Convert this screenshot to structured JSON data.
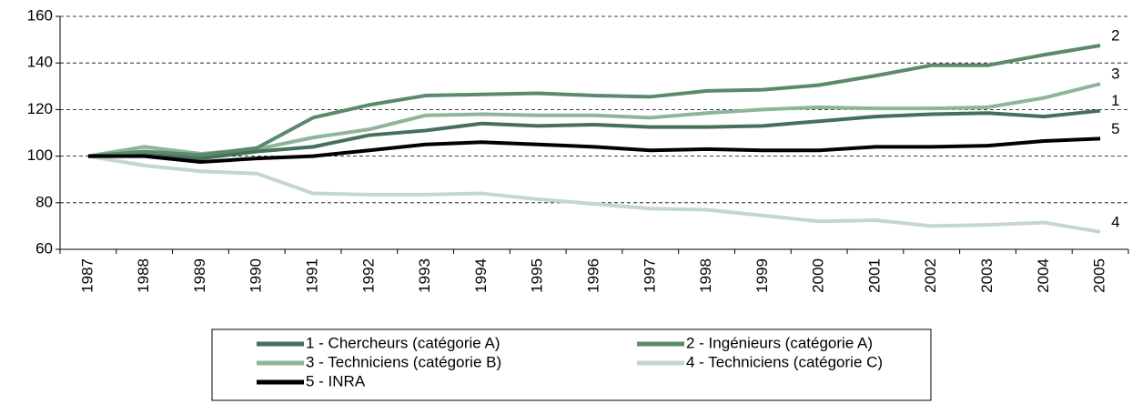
{
  "chart_data": {
    "type": "line",
    "categories": [
      "1987",
      "1988",
      "1989",
      "1990",
      "1991",
      "1992",
      "1993",
      "1994",
      "1995",
      "1996",
      "1997",
      "1998",
      "1999",
      "2000",
      "2001",
      "2002",
      "2003",
      "2004",
      "2005"
    ],
    "series": [
      {
        "name": "1 - Chercheurs (catégorie A)",
        "end_label": "1",
        "color": "#46705a",
        "values": [
          100,
          101,
          99,
          102,
          104,
          109,
          111,
          114,
          113,
          113.5,
          112.5,
          112.5,
          113,
          115,
          117,
          118,
          118.5,
          117,
          119.5
        ]
      },
      {
        "name": "2 - Ingénieurs (catégorie A)",
        "end_label": "2",
        "color": "#5a8a6b",
        "values": [
          100,
          102,
          100.5,
          103.5,
          116.5,
          122,
          126,
          126.5,
          127,
          126,
          125.5,
          128,
          128.5,
          130.5,
          134.5,
          139,
          139,
          143.5,
          147.5
        ]
      },
      {
        "name": "3 - Techniciens (catégorie B)",
        "end_label": "3",
        "color": "#8db59a",
        "values": [
          100,
          104,
          101,
          103,
          108,
          111.5,
          117.5,
          118,
          117.5,
          117.5,
          116.5,
          118.5,
          120,
          121,
          120.5,
          120.5,
          121,
          125,
          131
        ]
      },
      {
        "name": "4 - Techniciens (catégorie C)",
        "end_label": "4",
        "color": "#c3d8c9",
        "values": [
          100,
          96,
          93.5,
          92.5,
          84,
          83.5,
          83.5,
          84,
          81.5,
          79.5,
          77.5,
          77,
          74.5,
          72,
          72.5,
          70,
          70.5,
          71.5,
          67.5
        ]
      },
      {
        "name": "5 - INRA",
        "end_label": "5",
        "color": "#000000",
        "values": [
          100,
          100,
          97.5,
          99,
          100,
          102.5,
          105,
          106,
          105,
          104,
          102.5,
          103,
          102.5,
          102.5,
          104,
          104,
          104.5,
          106.5,
          107.5
        ]
      }
    ],
    "ylim": [
      60,
      160
    ],
    "yticks": [
      60,
      80,
      100,
      120,
      140,
      160
    ],
    "grid": true
  }
}
